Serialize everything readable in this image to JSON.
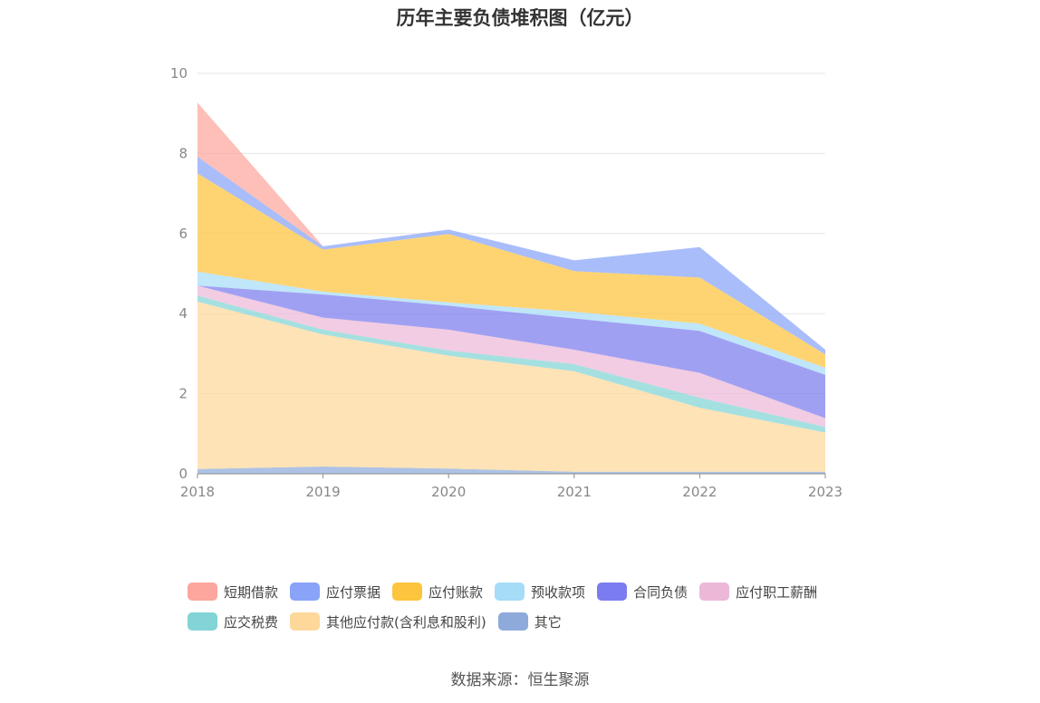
{
  "title": "历年主要负债堆积图（亿元）",
  "source": "数据来源：恒生聚源",
  "chart_data": {
    "type": "area",
    "stacked": true,
    "categories": [
      "2018",
      "2019",
      "2020",
      "2021",
      "2022",
      "2023"
    ],
    "ylim": [
      0,
      10
    ],
    "yticks": [
      "0",
      "2",
      "4",
      "6",
      "8",
      "10"
    ],
    "grid": true,
    "legend_position": "bottom",
    "series": [
      {
        "name": "其它",
        "color": "#8eaadb",
        "values": [
          0.12,
          0.18,
          0.13,
          0.05,
          0.05,
          0.05
        ]
      },
      {
        "name": "其他应付款(含利息和股利)",
        "color": "#fdd89a",
        "values": [
          4.18,
          3.3,
          2.82,
          2.51,
          1.6,
          0.98
        ]
      },
      {
        "name": "应交税费",
        "color": "#82d4d6",
        "values": [
          0.15,
          0.12,
          0.13,
          0.18,
          0.25,
          0.14
        ]
      },
      {
        "name": "应付职工薪酬",
        "color": "#ebb8d8",
        "values": [
          0.25,
          0.3,
          0.52,
          0.36,
          0.62,
          0.22
        ]
      },
      {
        "name": "合同负债",
        "color": "#7b7cef",
        "values": [
          0.0,
          0.58,
          0.6,
          0.78,
          1.05,
          1.08
        ]
      },
      {
        "name": "预收款项",
        "color": "#a6dcf6",
        "values": [
          0.35,
          0.07,
          0.08,
          0.17,
          0.18,
          0.18
        ]
      },
      {
        "name": "应付账款",
        "color": "#fdc43d",
        "values": [
          2.45,
          1.05,
          1.71,
          1.01,
          1.15,
          0.33
        ]
      },
      {
        "name": "应付票据",
        "color": "#88a3f8",
        "values": [
          0.42,
          0.08,
          0.11,
          0.27,
          0.76,
          0.12
        ]
      },
      {
        "name": "短期借款",
        "color": "#fca69d",
        "values": [
          1.35,
          0.0,
          0.0,
          0.0,
          0.0,
          0.0
        ]
      }
    ],
    "legend_order": [
      "短期借款",
      "应付票据",
      "应付账款",
      "预收款项",
      "合同负债",
      "应付职工薪酬",
      "应交税费",
      "其他应付款(含利息和股利)",
      "其它"
    ],
    "legend_rows": [
      6,
      3
    ]
  }
}
